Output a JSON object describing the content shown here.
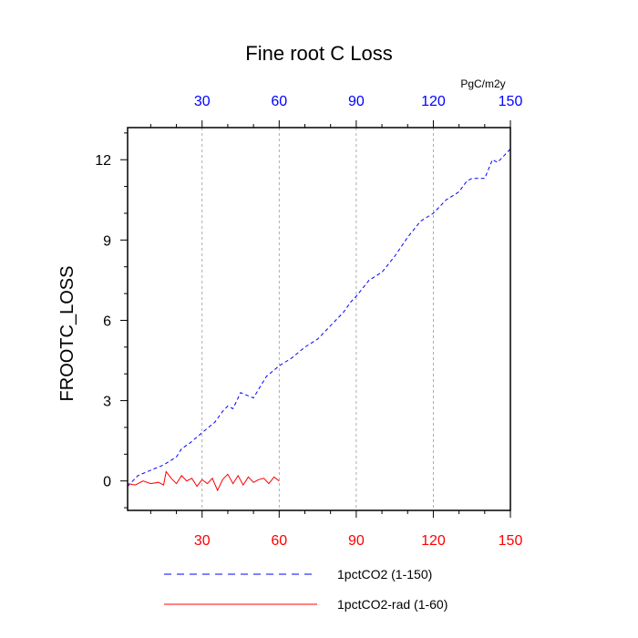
{
  "chart_data": {
    "type": "line",
    "title": "Fine root C Loss",
    "ylabel": "FROOTC_LOSS",
    "units": "PgC/m2y",
    "xlim": [
      1,
      150
    ],
    "ylim": [
      -1.1,
      13.2
    ],
    "x_ticks": [
      30,
      60,
      90,
      120,
      150
    ],
    "y_ticks": [
      0,
      3,
      6,
      9,
      12
    ],
    "bottom_tick_color": "#ff0000",
    "top_tick_color": "#0000ff",
    "grid": "vertical dashed at x ticks",
    "legend_position": "bottom",
    "series": [
      {
        "name": "1pctCO2 (1-150)",
        "color": "#0000ff",
        "style": "dashed",
        "x": [
          1,
          5,
          10,
          15,
          20,
          22,
          25,
          30,
          35,
          38,
          40,
          42,
          45,
          50,
          55,
          60,
          65,
          70,
          75,
          80,
          85,
          88,
          90,
          95,
          100,
          105,
          110,
          115,
          120,
          125,
          130,
          133,
          135,
          140,
          143,
          145,
          150
        ],
        "y": [
          -0.2,
          0.2,
          0.4,
          0.6,
          0.9,
          1.2,
          1.4,
          1.8,
          2.2,
          2.6,
          2.8,
          2.7,
          3.3,
          3.1,
          3.9,
          4.3,
          4.6,
          5.0,
          5.3,
          5.8,
          6.3,
          6.7,
          6.9,
          7.5,
          7.8,
          8.4,
          9.1,
          9.7,
          10.0,
          10.5,
          10.8,
          11.2,
          11.3,
          11.3,
          12.0,
          11.9,
          12.4
        ]
      },
      {
        "name": "1pctCO2-rad (1-60)",
        "color": "#ff0000",
        "style": "solid",
        "x": [
          1,
          4,
          7,
          10,
          13,
          15,
          16,
          18,
          20,
          22,
          24,
          26,
          28,
          30,
          32,
          34,
          36,
          38,
          40,
          42,
          44,
          46,
          48,
          50,
          52,
          54,
          56,
          58,
          60
        ],
        "y": [
          -0.1,
          -0.15,
          0.0,
          -0.1,
          -0.05,
          -0.15,
          0.35,
          0.1,
          -0.1,
          0.2,
          0.0,
          0.1,
          -0.2,
          0.05,
          -0.1,
          0.1,
          -0.35,
          0.05,
          0.25,
          -0.1,
          0.2,
          -0.15,
          0.15,
          -0.05,
          0.05,
          0.1,
          -0.1,
          0.15,
          0.0
        ]
      }
    ]
  }
}
